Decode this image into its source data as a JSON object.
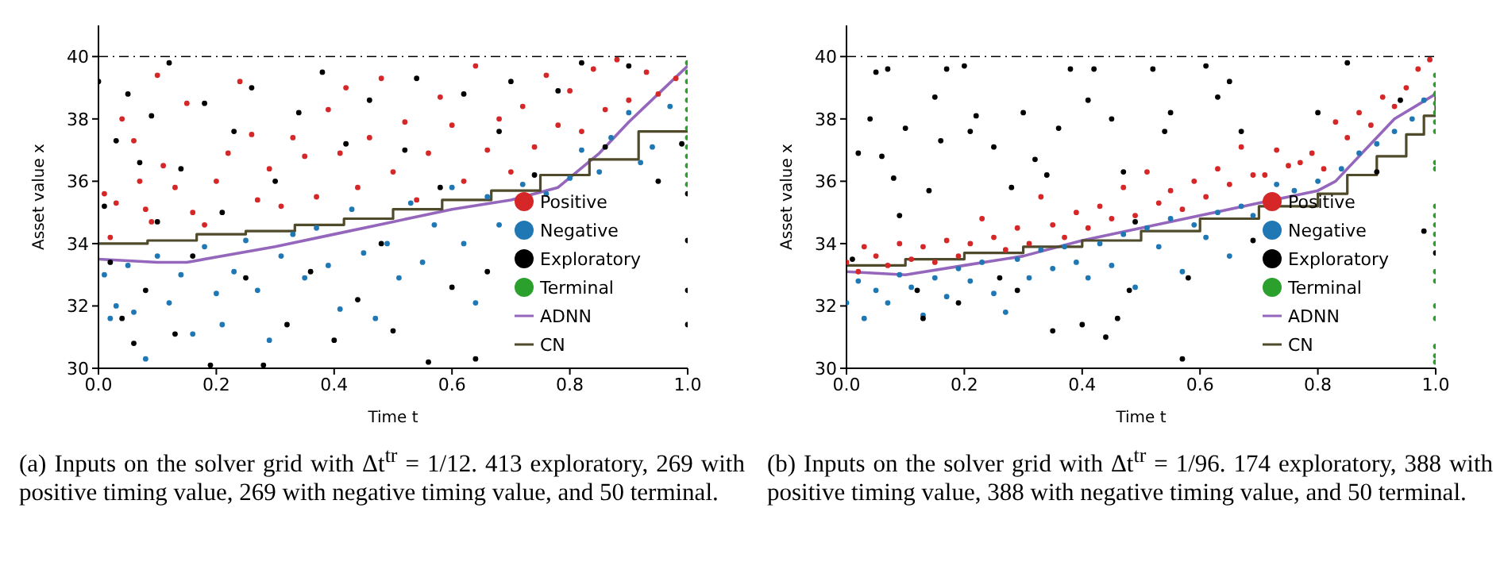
{
  "chart_data": [
    {
      "type": "scatter",
      "xlabel": "Time t",
      "ylabel": "Asset value x",
      "xlim": [
        0,
        1
      ],
      "ylim": [
        30,
        41
      ],
      "xticks": [
        {
          "value": 0,
          "label": "0.0"
        },
        {
          "value": 0.2,
          "label": "0.2"
        },
        {
          "value": 0.4,
          "label": "0.4"
        },
        {
          "value": 0.6,
          "label": "0.6"
        },
        {
          "value": 0.8,
          "label": "0.8"
        },
        {
          "value": 1,
          "label": "1.0"
        }
      ],
      "yticks": [
        30,
        32,
        34,
        36,
        38,
        40
      ],
      "grid": false,
      "legend": "bottom right",
      "marker": "circle",
      "ref_lines": [
        {
          "axis": "y",
          "value": 40,
          "color": "#000000",
          "line_style": "dashed"
        }
      ],
      "annotations": [
        "(a) Inputs on the solver grid with Δt$^{tr}$ = 1/12. 413 exploratory, 269 with positive timing value, 269 with negative timing value, and 50 terminal."
      ],
      "series": [
        {
          "name": "Positive",
          "color": "#d62728",
          "x": [
            0.01,
            0.02,
            0.03,
            0.04,
            0.06,
            0.07,
            0.08,
            0.09,
            0.1,
            0.11,
            0.13,
            0.15,
            0.16,
            0.18,
            0.2,
            0.22,
            0.24,
            0.26,
            0.27,
            0.29,
            0.31,
            0.33,
            0.35,
            0.37,
            0.39,
            0.41,
            0.42,
            0.44,
            0.46,
            0.48,
            0.5,
            0.52,
            0.54,
            0.56,
            0.58,
            0.6,
            0.62,
            0.64,
            0.66,
            0.68,
            0.7,
            0.72,
            0.74,
            0.76,
            0.78,
            0.8,
            0.82,
            0.84,
            0.86,
            0.88,
            0.9,
            0.93,
            0.95,
            0.98
          ],
          "values": [
            35.6,
            34.2,
            35.3,
            38.0,
            37.3,
            36.0,
            35.1,
            34.7,
            39.4,
            36.5,
            35.8,
            38.5,
            35.0,
            34.6,
            36.0,
            36.9,
            39.2,
            37.5,
            35.4,
            36.4,
            35.2,
            37.4,
            36.8,
            35.5,
            38.3,
            36.9,
            39.0,
            35.8,
            37.4,
            39.3,
            36.3,
            37.9,
            35.4,
            36.9,
            38.7,
            37.8,
            36.0,
            39.7,
            37.0,
            38.0,
            36.3,
            38.4,
            37.1,
            39.4,
            37.8,
            38.9,
            37.6,
            39.6,
            38.3,
            39.9,
            38.6,
            39.5,
            38.8,
            39.3
          ]
        },
        {
          "name": "Negative",
          "color": "#1f77b4",
          "x": [
            0.01,
            0.02,
            0.03,
            0.05,
            0.06,
            0.08,
            0.1,
            0.12,
            0.14,
            0.16,
            0.18,
            0.2,
            0.21,
            0.23,
            0.25,
            0.27,
            0.29,
            0.31,
            0.33,
            0.35,
            0.37,
            0.39,
            0.41,
            0.43,
            0.45,
            0.47,
            0.49,
            0.51,
            0.53,
            0.55,
            0.57,
            0.6,
            0.62,
            0.64,
            0.66,
            0.68,
            0.72,
            0.76,
            0.8,
            0.82,
            0.85,
            0.87,
            0.9,
            0.92,
            0.94,
            0.97
          ],
          "values": [
            33.0,
            31.6,
            32.0,
            33.3,
            31.8,
            30.3,
            33.6,
            32.1,
            33.0,
            31.1,
            33.9,
            32.4,
            31.4,
            33.1,
            34.1,
            32.5,
            30.9,
            33.6,
            34.3,
            32.9,
            34.5,
            33.3,
            31.9,
            35.1,
            33.7,
            31.6,
            34.0,
            32.9,
            35.3,
            33.4,
            34.6,
            35.8,
            34.0,
            32.1,
            35.5,
            34.6,
            35.9,
            35.6,
            36.1,
            37.0,
            36.3,
            37.4,
            38.2,
            36.6,
            37.1,
            38.4
          ]
        },
        {
          "name": "Exploratory",
          "color": "#000000",
          "x": [
            0.0,
            0.01,
            0.02,
            0.03,
            0.04,
            0.05,
            0.06,
            0.07,
            0.08,
            0.09,
            0.1,
            0.12,
            0.13,
            0.14,
            0.16,
            0.18,
            0.19,
            0.21,
            0.23,
            0.25,
            0.26,
            0.28,
            0.3,
            0.32,
            0.34,
            0.36,
            0.38,
            0.4,
            0.42,
            0.44,
            0.46,
            0.48,
            0.5,
            0.52,
            0.54,
            0.56,
            0.58,
            0.6,
            0.62,
            0.64,
            0.66,
            0.68,
            0.7,
            0.74,
            0.78,
            0.82,
            0.86,
            0.9,
            0.95,
            0.99,
            1.0,
            1.0,
            1.0,
            1.0
          ],
          "values": [
            39.2,
            35.2,
            33.4,
            37.3,
            31.6,
            38.8,
            30.8,
            36.6,
            32.5,
            38.1,
            34.7,
            39.8,
            31.1,
            36.4,
            33.6,
            38.5,
            30.1,
            35.0,
            37.6,
            32.9,
            39.0,
            30.1,
            36.0,
            31.4,
            38.2,
            33.1,
            39.5,
            30.9,
            37.2,
            32.2,
            38.6,
            34.0,
            31.2,
            37.0,
            39.3,
            30.2,
            35.8,
            32.6,
            38.8,
            30.3,
            33.1,
            37.6,
            39.2,
            36.2,
            38.9,
            39.8,
            37.1,
            39.7,
            36.0,
            37.2,
            35.6,
            34.1,
            32.5,
            31.4
          ]
        },
        {
          "name": "Terminal",
          "color": "#2ca02c",
          "x": [
            1,
            1,
            1,
            1,
            1,
            1,
            1,
            1,
            1,
            1,
            1,
            1,
            1,
            1
          ],
          "values": [
            35.9,
            36.2,
            36.5,
            36.8,
            37.1,
            37.4,
            37.7,
            38.0,
            38.3,
            38.6,
            38.9,
            39.2,
            39.5,
            39.8
          ]
        },
        {
          "name": "ADNN",
          "type": "line",
          "marker": "none",
          "color": "#9467bd",
          "x": [
            0,
            0.1,
            0.15,
            0.3,
            0.4,
            0.5,
            0.6,
            0.7,
            0.78,
            0.85,
            0.9,
            0.95,
            1.0
          ],
          "values": [
            33.5,
            33.4,
            33.4,
            33.9,
            34.3,
            34.7,
            35.1,
            35.4,
            35.8,
            36.9,
            37.9,
            38.8,
            39.7
          ]
        },
        {
          "name": "CN",
          "type": "step",
          "marker": "none",
          "color": "#4f4a2a",
          "x": [
            0,
            0.0833,
            0.1667,
            0.25,
            0.3333,
            0.4167,
            0.5,
            0.5833,
            0.6667,
            0.75,
            0.8333,
            0.9167,
            1.0
          ],
          "values": [
            34.0,
            34.1,
            34.3,
            34.4,
            34.6,
            34.8,
            35.1,
            35.4,
            35.7,
            36.2,
            36.7,
            37.6,
            37.6
          ]
        }
      ]
    },
    {
      "type": "scatter",
      "xlabel": "Time t",
      "ylabel": "Asset value x",
      "xlim": [
        0,
        1
      ],
      "ylim": [
        30,
        41
      ],
      "xticks": [
        {
          "value": 0,
          "label": "0.0"
        },
        {
          "value": 0.2,
          "label": "0.2"
        },
        {
          "value": 0.4,
          "label": "0.4"
        },
        {
          "value": 0.6,
          "label": "0.6"
        },
        {
          "value": 0.8,
          "label": "0.8"
        },
        {
          "value": 1,
          "label": "1.0"
        }
      ],
      "yticks": [
        30,
        32,
        34,
        36,
        38,
        40
      ],
      "grid": false,
      "legend": "bottom right",
      "marker": "circle",
      "ref_lines": [
        {
          "axis": "y",
          "value": 40,
          "color": "#000000",
          "line_style": "dashed"
        }
      ],
      "annotations": [
        "(b) Inputs on the solver grid with Δt$^{tr}$ = 1/96. 174 exploratory, 388 with positive timing value, 388 with negative timing value, and 50 terminal."
      ],
      "series": [
        {
          "name": "Positive",
          "color": "#d62728",
          "x": [
            0.0,
            0.02,
            0.03,
            0.05,
            0.07,
            0.09,
            0.11,
            0.13,
            0.15,
            0.17,
            0.19,
            0.21,
            0.23,
            0.25,
            0.27,
            0.29,
            0.31,
            0.33,
            0.35,
            0.37,
            0.39,
            0.41,
            0.43,
            0.45,
            0.47,
            0.49,
            0.51,
            0.53,
            0.55,
            0.57,
            0.59,
            0.61,
            0.63,
            0.65,
            0.67,
            0.69,
            0.71,
            0.73,
            0.75,
            0.77,
            0.79,
            0.81,
            0.83,
            0.85,
            0.87,
            0.89,
            0.91,
            0.93,
            0.95,
            0.97,
            0.99
          ],
          "values": [
            33.4,
            33.1,
            33.9,
            33.6,
            33.3,
            34.0,
            33.5,
            33.9,
            33.4,
            34.1,
            33.6,
            34.0,
            34.8,
            34.2,
            33.8,
            34.5,
            34.0,
            35.5,
            34.6,
            34.2,
            35.0,
            34.5,
            35.2,
            34.8,
            35.8,
            34.9,
            36.3,
            35.3,
            35.7,
            35.1,
            36.0,
            35.5,
            36.4,
            35.9,
            37.1,
            36.2,
            36.2,
            37.0,
            36.5,
            36.6,
            36.9,
            36.4,
            37.9,
            37.4,
            38.2,
            37.8,
            38.7,
            38.4,
            39.0,
            39.6,
            39.9
          ]
        },
        {
          "name": "Negative",
          "color": "#1f77b4",
          "x": [
            0.0,
            0.02,
            0.03,
            0.05,
            0.07,
            0.09,
            0.11,
            0.13,
            0.15,
            0.17,
            0.19,
            0.21,
            0.23,
            0.25,
            0.27,
            0.29,
            0.31,
            0.33,
            0.35,
            0.37,
            0.39,
            0.41,
            0.43,
            0.45,
            0.47,
            0.49,
            0.51,
            0.53,
            0.55,
            0.57,
            0.59,
            0.61,
            0.63,
            0.65,
            0.67,
            0.69,
            0.73,
            0.76,
            0.8,
            0.84,
            0.87,
            0.9,
            0.93,
            0.96,
            0.98
          ],
          "values": [
            32.1,
            32.8,
            31.6,
            32.5,
            32.1,
            33.0,
            32.6,
            31.7,
            32.9,
            32.3,
            33.2,
            32.8,
            33.4,
            32.4,
            31.8,
            33.5,
            32.9,
            33.8,
            33.2,
            33.9,
            33.4,
            32.9,
            34.0,
            33.3,
            34.3,
            32.6,
            34.5,
            33.9,
            34.8,
            33.1,
            34.6,
            34.2,
            35.0,
            33.6,
            35.2,
            34.9,
            35.9,
            35.7,
            36.0,
            36.4,
            36.9,
            37.2,
            37.6,
            38.0,
            38.6
          ]
        },
        {
          "name": "Exploratory",
          "color": "#000000",
          "x": [
            0.01,
            0.02,
            0.04,
            0.05,
            0.06,
            0.07,
            0.08,
            0.09,
            0.1,
            0.12,
            0.13,
            0.14,
            0.15,
            0.16,
            0.17,
            0.19,
            0.2,
            0.21,
            0.22,
            0.25,
            0.26,
            0.28,
            0.29,
            0.3,
            0.32,
            0.34,
            0.35,
            0.36,
            0.38,
            0.4,
            0.41,
            0.42,
            0.44,
            0.45,
            0.46,
            0.47,
            0.48,
            0.49,
            0.52,
            0.54,
            0.55,
            0.57,
            0.58,
            0.61,
            0.63,
            0.65,
            0.67,
            0.69,
            0.8,
            0.85,
            0.9,
            0.94,
            0.98,
            1.0
          ],
          "values": [
            33.5,
            36.9,
            38.0,
            39.5,
            36.8,
            39.6,
            36.1,
            34.9,
            37.7,
            32.5,
            31.6,
            35.7,
            38.7,
            37.3,
            39.6,
            32.1,
            39.7,
            37.6,
            38.1,
            37.1,
            32.9,
            35.8,
            32.5,
            38.2,
            36.7,
            36.2,
            31.2,
            37.7,
            39.6,
            31.4,
            38.6,
            39.6,
            31.0,
            38.0,
            31.6,
            36.3,
            32.5,
            34.7,
            39.6,
            37.6,
            38.2,
            30.3,
            32.9,
            39.7,
            38.7,
            39.2,
            37.6,
            34.1,
            38.2,
            39.8,
            36.3,
            38.6,
            34.4,
            33.7
          ]
        },
        {
          "name": "Terminal",
          "color": "#2ca02c",
          "x": [
            1,
            1,
            1,
            1,
            1,
            1,
            1,
            1,
            1,
            1,
            1,
            1,
            1,
            1,
            1,
            1,
            1,
            1,
            1,
            1,
            1
          ],
          "values": [
            30.2,
            30.4,
            30.7,
            31.6,
            32.0,
            32.8,
            33.1,
            34.0,
            34.3,
            34.6,
            34.9,
            35.2,
            36.4,
            36.6,
            37.6,
            37.9,
            38.2,
            38.5,
            38.8,
            39.1,
            39.4
          ]
        },
        {
          "name": "ADNN",
          "type": "line",
          "marker": "none",
          "color": "#9467bd",
          "x": [
            0,
            0.1,
            0.2,
            0.3,
            0.4,
            0.5,
            0.6,
            0.7,
            0.8,
            0.83,
            0.88,
            0.93,
            1.0
          ],
          "values": [
            33.1,
            33.0,
            33.3,
            33.6,
            34.1,
            34.5,
            34.9,
            35.3,
            35.7,
            36.0,
            37.0,
            38.0,
            38.8
          ]
        },
        {
          "name": "CN",
          "type": "step",
          "marker": "none",
          "color": "#4f4a2a",
          "x": [
            0,
            0.1,
            0.2,
            0.3,
            0.4,
            0.5,
            0.6,
            0.7,
            0.8,
            0.85,
            0.9,
            0.95,
            0.98,
            1.0
          ],
          "values": [
            33.3,
            33.5,
            33.7,
            33.9,
            34.1,
            34.4,
            34.8,
            35.2,
            35.6,
            36.2,
            36.8,
            37.5,
            38.1,
            38.9
          ]
        }
      ]
    }
  ]
}
